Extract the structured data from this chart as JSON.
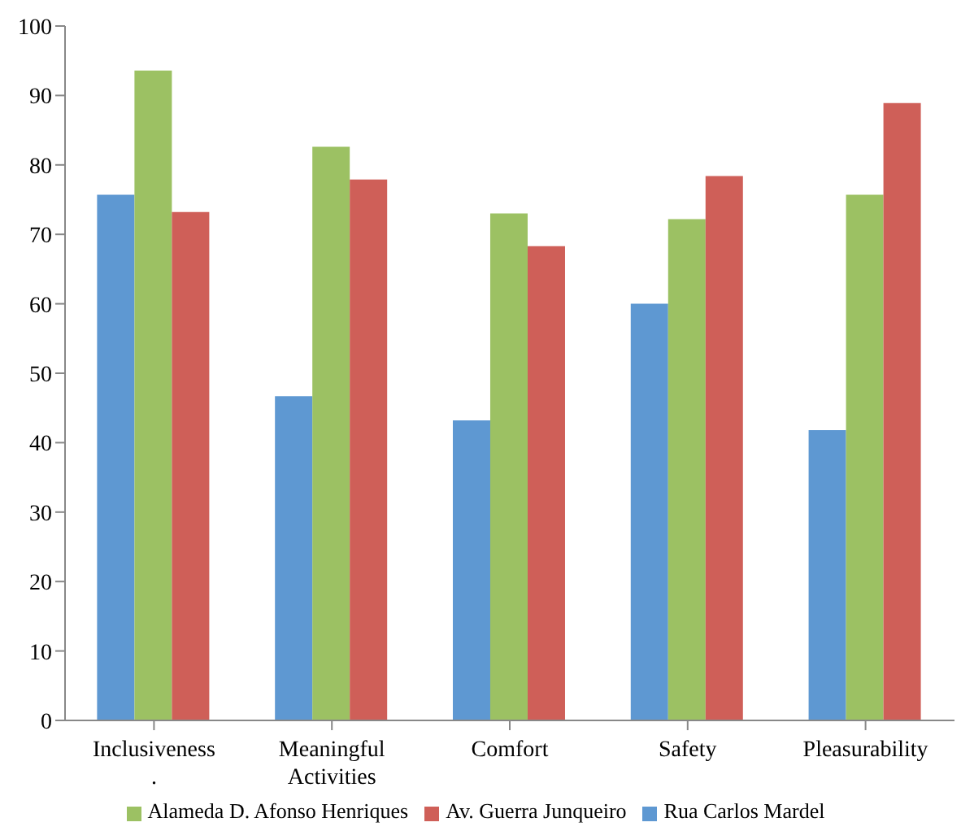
{
  "chart_data": {
    "type": "bar",
    "categories": [
      "Inclusiveness\n.",
      "Meaningful\nActivities",
      "Comfort",
      "Safety",
      "Pleasurability"
    ],
    "series": [
      {
        "name": "Rua Carlos Mardel",
        "color": "#5e98d2",
        "values": [
          75.7,
          46.7,
          43.2,
          60.0,
          41.8
        ]
      },
      {
        "name": "Alameda D. Afonso Henriques",
        "color": "#9cc163",
        "values": [
          93.6,
          82.6,
          73.0,
          72.2,
          75.7
        ]
      },
      {
        "name": "Av. Guerra Junqueiro",
        "color": "#cf5f58",
        "values": [
          73.2,
          77.9,
          68.3,
          78.4,
          88.9
        ]
      }
    ],
    "ylim": [
      0,
      100
    ],
    "yticks": [
      0,
      10,
      20,
      30,
      40,
      50,
      60,
      70,
      80,
      90,
      100
    ],
    "grid": false,
    "legend": "bottom"
  }
}
